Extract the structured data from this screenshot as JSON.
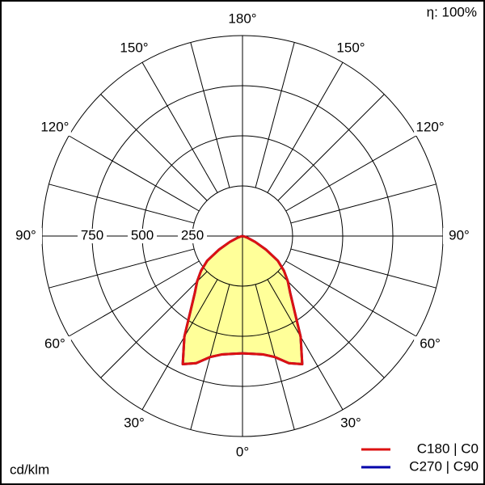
{
  "chart_data": {
    "type": "polar",
    "efficiency_label": "η: 100%",
    "unit_label": "cd/klm",
    "rlim": [
      0,
      1000
    ],
    "rticks": [
      250,
      500,
      750
    ],
    "angle_ticks": [
      {
        "value": 0,
        "label": "0°"
      },
      {
        "value": 30,
        "label": "30°"
      },
      {
        "value": 60,
        "label": "60°"
      },
      {
        "value": 90,
        "label": "90°"
      },
      {
        "value": 120,
        "label": "120°"
      },
      {
        "value": 150,
        "label": "150°"
      },
      {
        "value": 180,
        "label": "180°"
      }
    ],
    "spoke_step": 15,
    "angles": [
      0,
      5,
      10,
      15,
      20,
      25,
      30,
      35,
      40,
      45,
      50,
      55,
      60,
      65,
      70,
      75,
      80,
      85,
      90
    ],
    "fill": "#ffff99",
    "series": [
      {
        "name": "C270 | C90",
        "color": "#0000aa",
        "values": [
          585,
          590,
          600,
          625,
          675,
          705,
          580,
          450,
          370,
          320,
          270,
          215,
          135,
          70,
          30,
          10,
          0,
          0,
          0
        ]
      },
      {
        "name": "C180 | C0",
        "color": "#dd1111",
        "values": [
          585,
          590,
          600,
          625,
          675,
          705,
          580,
          450,
          370,
          320,
          270,
          215,
          135,
          70,
          30,
          10,
          0,
          0,
          0
        ]
      }
    ]
  }
}
